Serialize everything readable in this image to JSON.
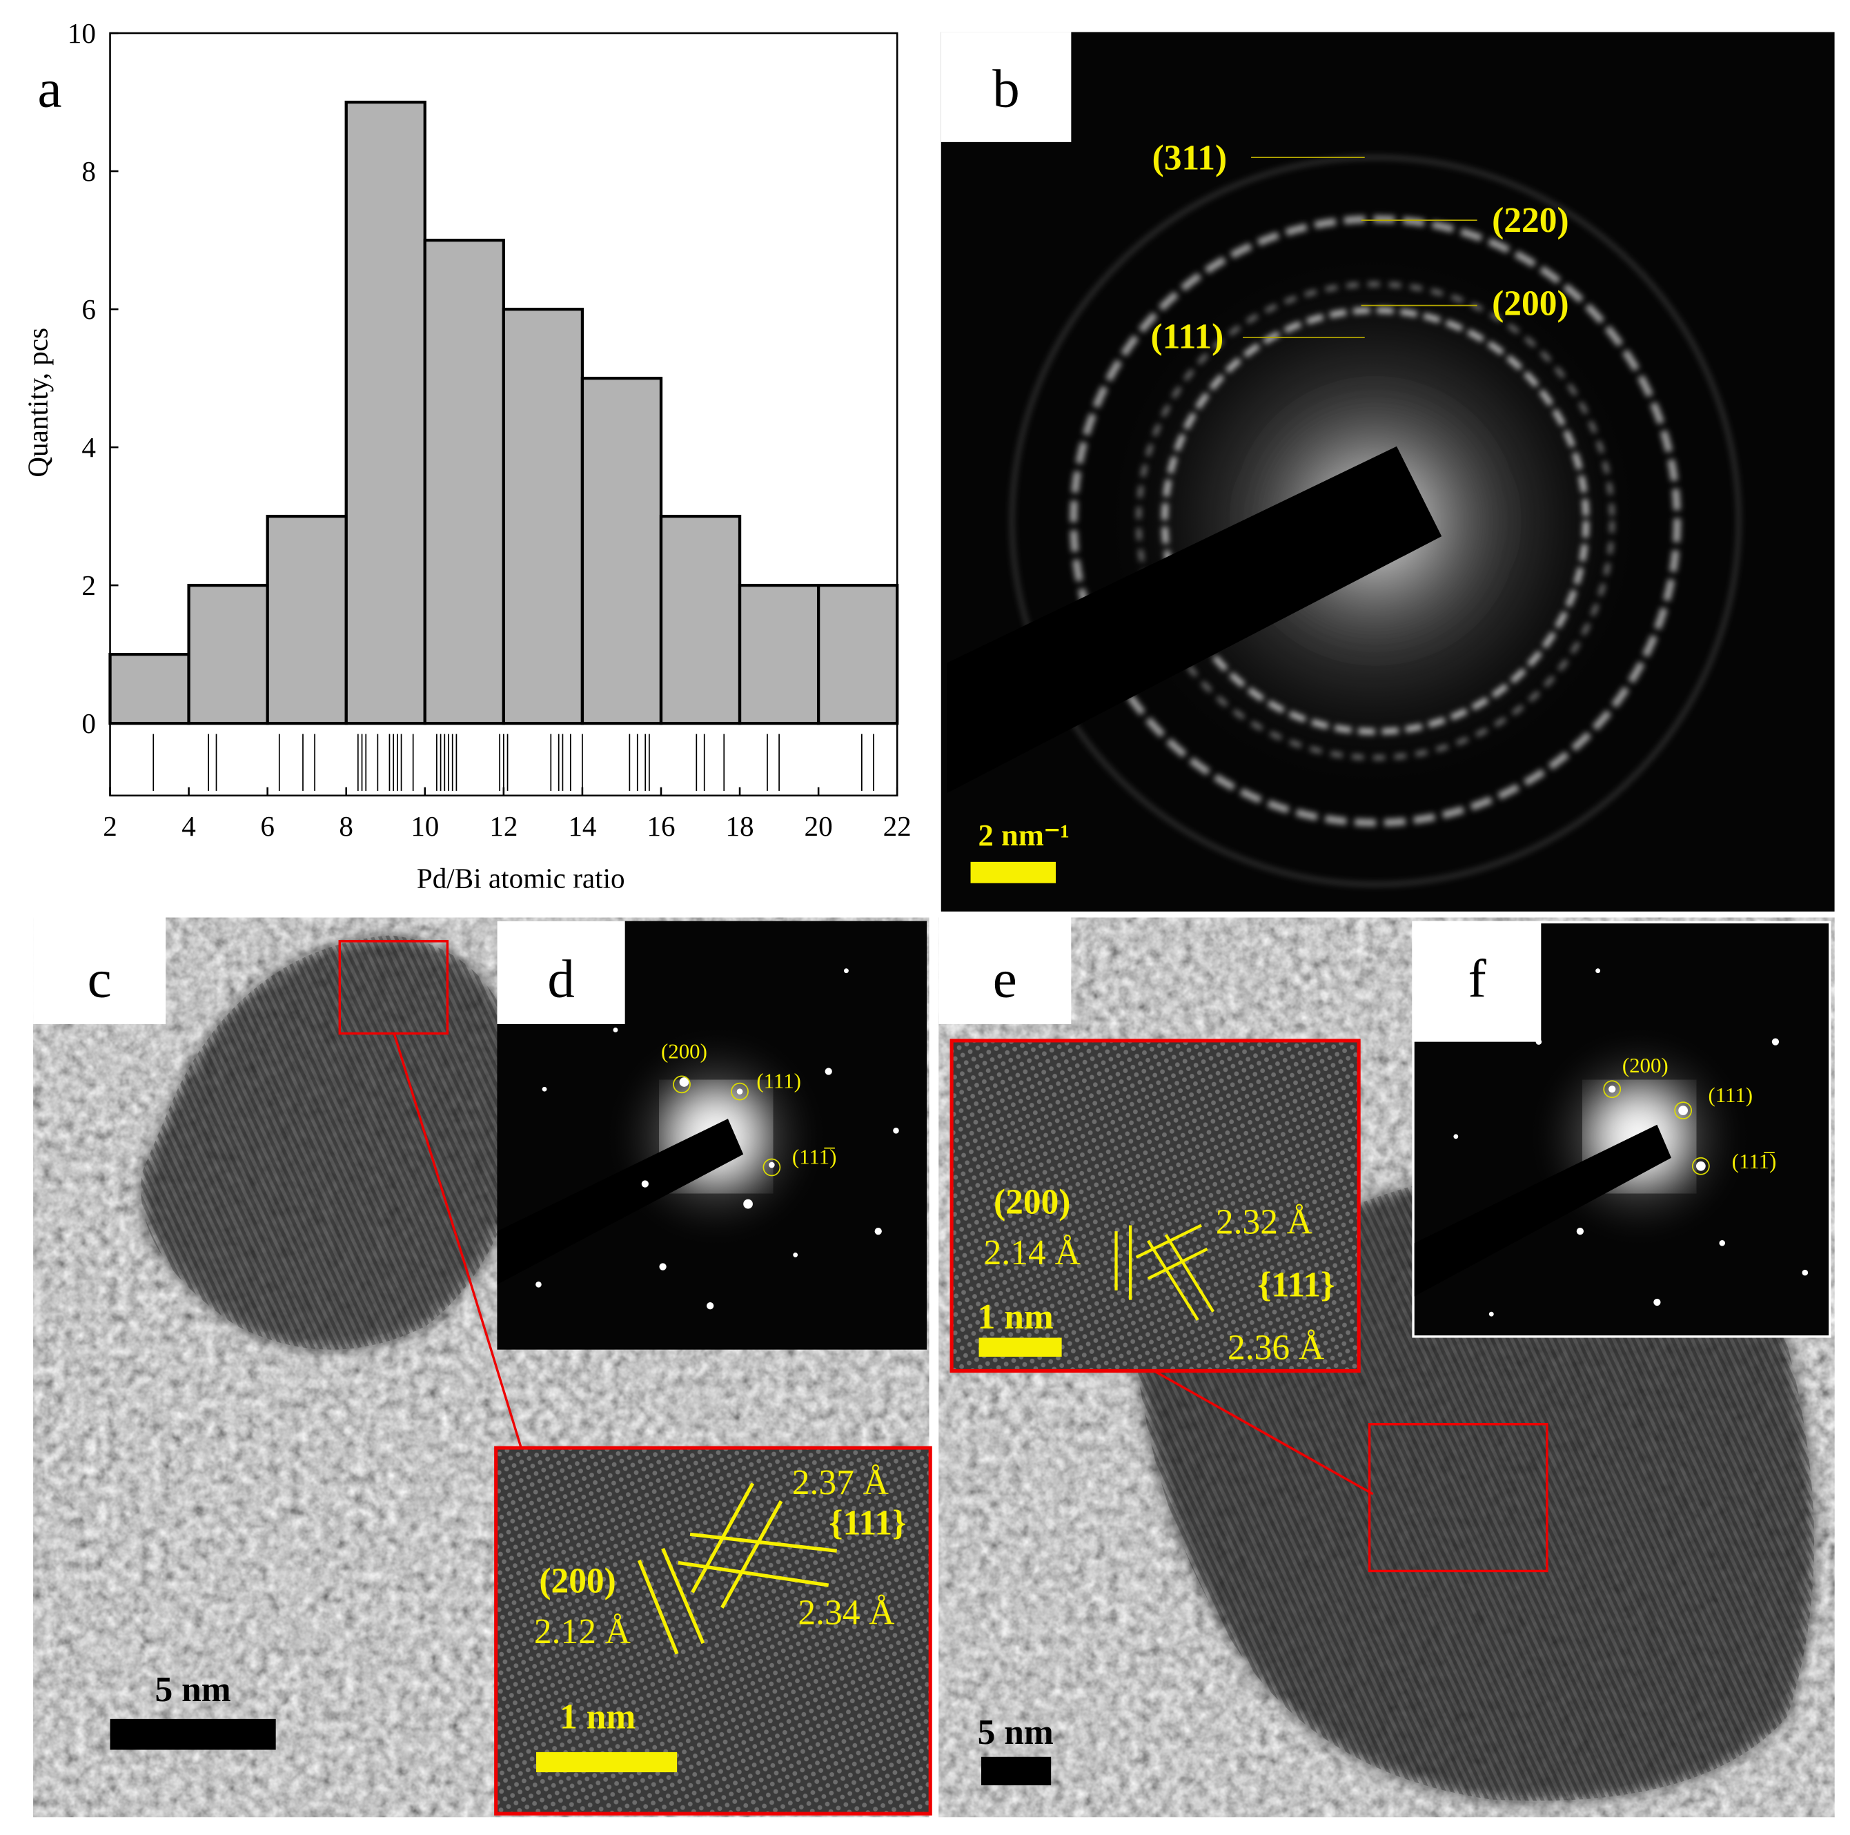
{
  "chart_data": {
    "type": "histogram",
    "panel_label": "a",
    "x_label": "Pd/Bi atomic ratio",
    "y_label": "Quantity, pcs",
    "bins": [
      2,
      4,
      6,
      8,
      10,
      12,
      14,
      16,
      18,
      20,
      22
    ],
    "counts": [
      1,
      2,
      3,
      9,
      7,
      6,
      5,
      3,
      2,
      2
    ],
    "rug": [
      3.1,
      4.5,
      4.7,
      6.3,
      6.9,
      7.2,
      8.3,
      8.4,
      8.5,
      8.8,
      9.1,
      9.2,
      9.3,
      9.4,
      9.7,
      10.3,
      10.4,
      10.5,
      10.6,
      10.7,
      10.8,
      11.9,
      12.0,
      12.1,
      13.2,
      13.4,
      13.5,
      13.7,
      14.0,
      15.2,
      15.4,
      15.6,
      15.7,
      16.9,
      17.1,
      17.6,
      18.7,
      19.0,
      21.1,
      21.4
    ],
    "xlim": [
      2,
      22
    ],
    "ylim": [
      0,
      10
    ],
    "xticks": [
      2,
      4,
      6,
      8,
      10,
      12,
      14,
      16,
      18,
      20,
      22
    ],
    "yticks": [
      0,
      2,
      4,
      6,
      8,
      10
    ],
    "color": "#b3b3b3"
  },
  "panels": {
    "b": {
      "label": "b",
      "reflections": [
        "(311)",
        "(220)",
        "(200)",
        "(111)"
      ],
      "scale_bar": "2 nm⁻¹"
    },
    "c": {
      "label": "c",
      "scale_bar": "5 nm",
      "zoom": {
        "spacing_1": "2.37 Å",
        "family_1": "{111}",
        "plane": "(200)",
        "spacing_2": "2.12 Å",
        "spacing_3": "2.34 Å",
        "scale_bar": "1 nm"
      }
    },
    "d": {
      "label": "d",
      "reflections": [
        "(200)",
        "(111)",
        "(111̅)"
      ]
    },
    "e": {
      "label": "e",
      "scale_bar": "5 nm",
      "zoom": {
        "plane": "(200)",
        "spacing_1": "2.14 Å",
        "spacing_2": "2.32 Å",
        "family_1": "{111}",
        "scale_bar": "1 nm",
        "spacing_3": "2.36 Å"
      }
    },
    "f": {
      "label": "f",
      "reflections": [
        "(200)",
        "(111)",
        "(111̅)"
      ]
    }
  }
}
